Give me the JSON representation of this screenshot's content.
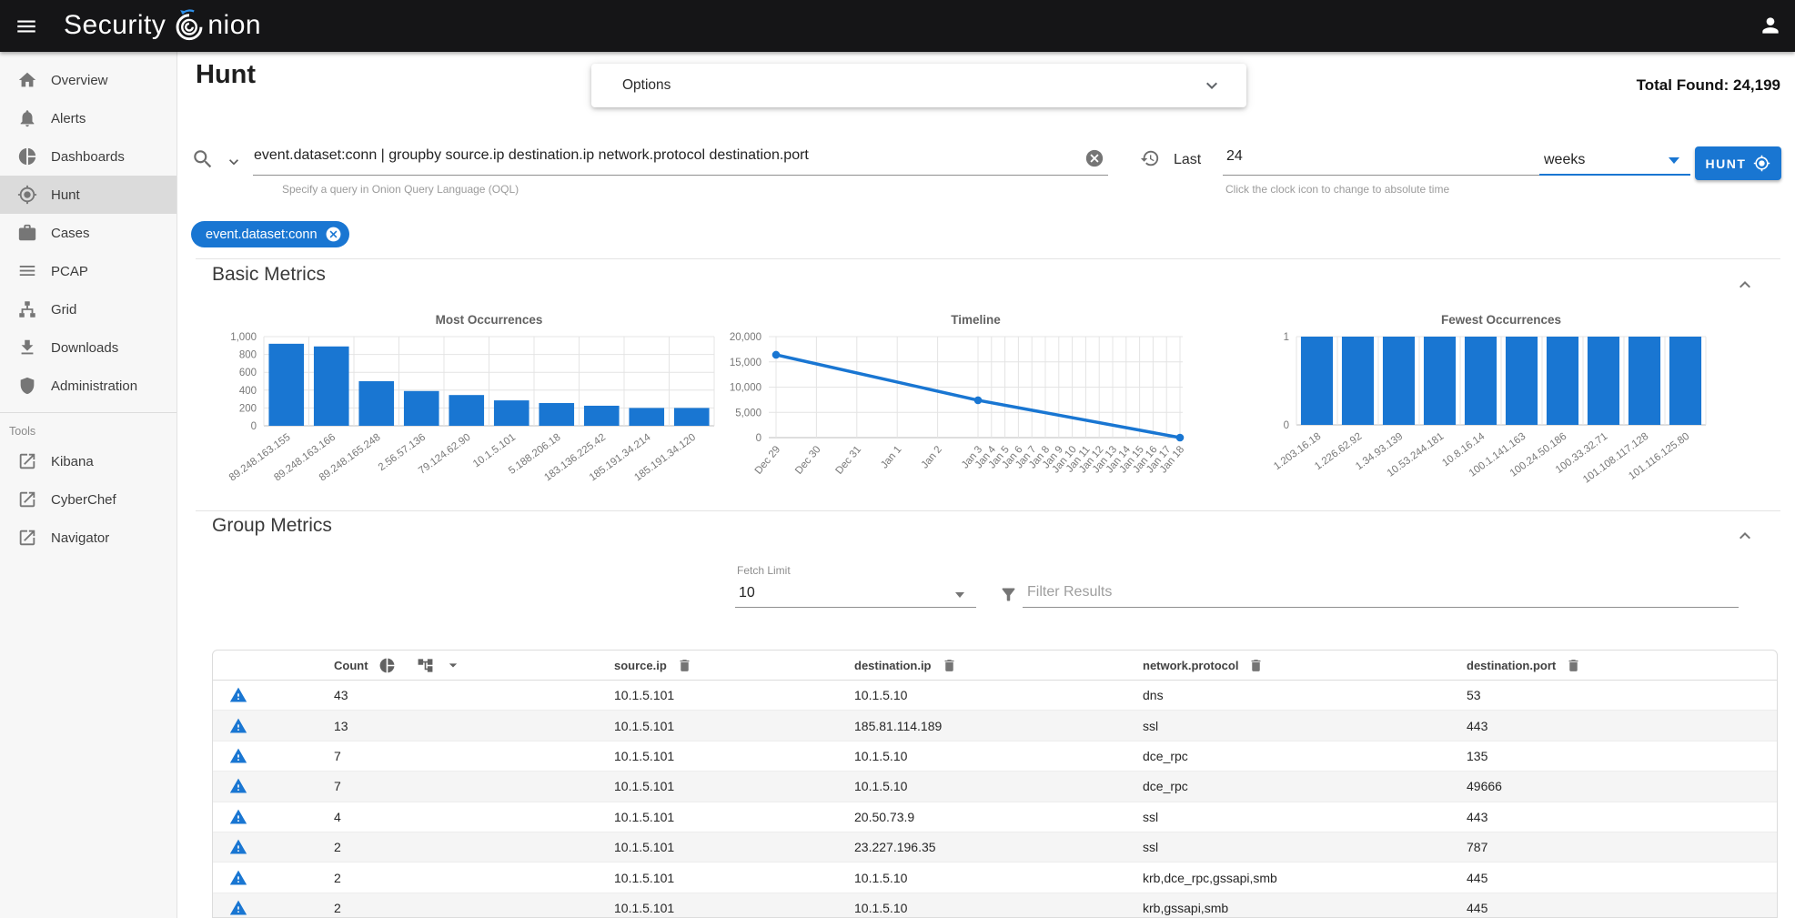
{
  "topbar": {
    "brand_left": "Security",
    "brand_right": "nion"
  },
  "sidebar": {
    "items": [
      {
        "label": "Overview",
        "icon": "home",
        "selected": false
      },
      {
        "label": "Alerts",
        "icon": "bell",
        "selected": false
      },
      {
        "label": "Dashboards",
        "icon": "pie",
        "selected": false
      },
      {
        "label": "Hunt",
        "icon": "crosshair",
        "selected": true
      },
      {
        "label": "Cases",
        "icon": "briefcase",
        "selected": false
      },
      {
        "label": "PCAP",
        "icon": "lines",
        "selected": false
      },
      {
        "label": "Grid",
        "icon": "sitemap",
        "selected": false
      },
      {
        "label": "Downloads",
        "icon": "download",
        "selected": false
      },
      {
        "label": "Administration",
        "icon": "shield",
        "selected": false
      }
    ],
    "tools_label": "Tools",
    "tools": [
      {
        "label": "Kibana",
        "icon": "external"
      },
      {
        "label": "CyberChef",
        "icon": "external"
      },
      {
        "label": "Navigator",
        "icon": "external"
      }
    ]
  },
  "page": {
    "title": "Hunt",
    "options_label": "Options",
    "total_found": "Total Found: 24,199"
  },
  "query": {
    "value": "event.dataset:conn | groupby source.ip destination.ip network.protocol destination.port",
    "helper": "Specify a query in Onion Query Language (OQL)"
  },
  "time": {
    "last_label": "Last",
    "duration": "24",
    "unit": "weeks",
    "helper": "Click the clock icon to change to absolute time",
    "hunt_label": "HUNT"
  },
  "filter_chip": "event.dataset:conn",
  "sections": {
    "basic": "Basic Metrics",
    "group": "Group Metrics"
  },
  "group_controls": {
    "fetch_limit_label": "Fetch Limit",
    "fetch_limit_value": "10",
    "filter_placeholder": "Filter Results"
  },
  "chart_data": [
    {
      "type": "bar",
      "title": "Most Occurrences",
      "categories": [
        "89.248.163.155",
        "89.248.163.166",
        "89.248.165.248",
        "2.56.57.136",
        "79.124.62.90",
        "10.1.5.101",
        "5.188.206.18",
        "183.136.225.42",
        "185.191.34.214",
        "185.191.34.120"
      ],
      "values": [
        920,
        890,
        500,
        390,
        345,
        285,
        255,
        225,
        200,
        200
      ],
      "ylim": [
        0,
        1000
      ],
      "yticks": [
        1000,
        800,
        600,
        400,
        200,
        0
      ],
      "ytick_labels": [
        "1,000",
        "800",
        "600",
        "400",
        "200",
        "0"
      ],
      "grid": true,
      "legend": false
    },
    {
      "type": "line",
      "title": "Timeline",
      "xticks": [
        "Dec 29",
        "Dec 30",
        "Dec 31",
        "Jan 1",
        "Jan 2",
        "Jan 3",
        "Jan 4",
        "Jan 5",
        "Jan 6",
        "Jan 7",
        "Jan 8",
        "Jan 9",
        "Jan 10",
        "Jan 11",
        "Jan 12",
        "Jan 13",
        "Jan 14",
        "Jan 15",
        "Jan 16",
        "Jan 17",
        "Jan 18"
      ],
      "points": [
        {
          "x": "Dec 29",
          "y": 16400
        },
        {
          "x": "Jan 3",
          "y": 7400
        },
        {
          "x": "Jan 18",
          "y": 0
        }
      ],
      "ylim": [
        0,
        20000
      ],
      "yticks": [
        20000,
        15000,
        10000,
        5000,
        0
      ],
      "ytick_labels": [
        "20,000",
        "15,000",
        "10,000",
        "5,000",
        "0"
      ],
      "grid": true,
      "legend": false
    },
    {
      "type": "bar",
      "title": "Fewest Occurrences",
      "categories": [
        "1.203.16.18",
        "1.226.62.92",
        "1.34.93.139",
        "10.53.244.181",
        "10.8.16.14",
        "100.1.141.163",
        "100.24.50.186",
        "100.33.32.71",
        "101.108.117.128",
        "101.116.125.80"
      ],
      "values": [
        1,
        1,
        1,
        1,
        1,
        1,
        1,
        1,
        1,
        1
      ],
      "ylim": [
        0,
        1
      ],
      "yticks": [
        1,
        0
      ],
      "ytick_labels": [
        "1",
        "0"
      ],
      "grid": true,
      "legend": false
    }
  ],
  "table": {
    "headers": [
      "Count",
      "source.ip",
      "destination.ip",
      "network.protocol",
      "destination.port"
    ],
    "rows": [
      [
        "43",
        "10.1.5.101",
        "10.1.5.10",
        "dns",
        "53"
      ],
      [
        "13",
        "10.1.5.101",
        "185.81.114.189",
        "ssl",
        "443"
      ],
      [
        "7",
        "10.1.5.101",
        "10.1.5.10",
        "dce_rpc",
        "135"
      ],
      [
        "7",
        "10.1.5.101",
        "10.1.5.10",
        "dce_rpc",
        "49666"
      ],
      [
        "4",
        "10.1.5.101",
        "20.50.73.9",
        "ssl",
        "443"
      ],
      [
        "2",
        "10.1.5.101",
        "23.227.196.35",
        "ssl",
        "787"
      ],
      [
        "2",
        "10.1.5.101",
        "10.1.5.10",
        "krb,dce_rpc,gssapi,smb",
        "445"
      ],
      [
        "2",
        "10.1.5.101",
        "10.1.5.10",
        "krb,gssapi,smb",
        "445"
      ]
    ]
  },
  "colors": {
    "accent": "#1976d2",
    "topbar": "#151517",
    "sidebar_selected": "#dbdbdb"
  }
}
